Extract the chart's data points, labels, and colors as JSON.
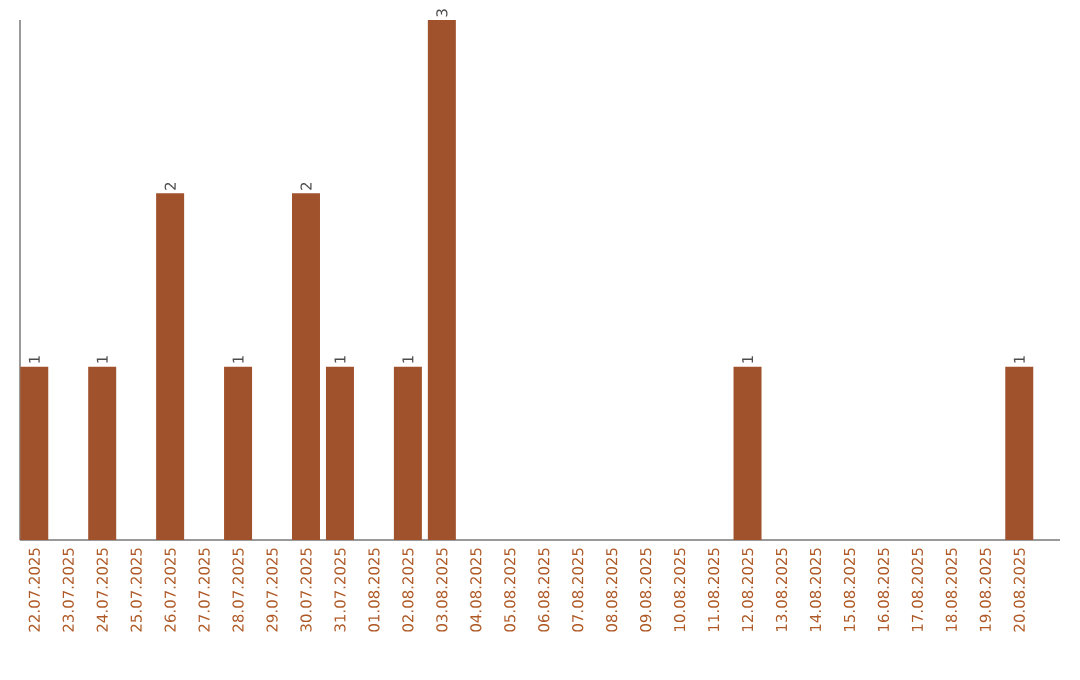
{
  "chart_data": {
    "type": "bar",
    "categories": [
      "22.07.2025",
      "23.07.2025",
      "24.07.2025",
      "25.07.2025",
      "26.07.2025",
      "27.07.2025",
      "28.07.2025",
      "29.07.2025",
      "30.07.2025",
      "31.07.2025",
      "01.08.2025",
      "02.08.2025",
      "03.08.2025",
      "04.08.2025",
      "05.08.2025",
      "06.08.2025",
      "07.08.2025",
      "08.08.2025",
      "09.08.2025",
      "10.08.2025",
      "11.08.2025",
      "12.08.2025",
      "13.08.2025",
      "14.08.2025",
      "15.08.2025",
      "16.08.2025",
      "17.08.2025",
      "18.08.2025",
      "19.08.2025",
      "20.08.2025"
    ],
    "values": [
      1,
      0,
      1,
      0,
      2,
      0,
      1,
      0,
      2,
      1,
      0,
      1,
      3,
      0,
      0,
      0,
      0,
      0,
      0,
      0,
      0,
      1,
      0,
      0,
      0,
      0,
      0,
      0,
      0,
      1
    ],
    "value_labels": [
      "1",
      null,
      "1",
      null,
      "2",
      null,
      "1",
      null,
      "2",
      "1",
      null,
      "1",
      "3",
      null,
      null,
      null,
      null,
      null,
      null,
      null,
      null,
      "1",
      null,
      null,
      null,
      null,
      null,
      null,
      null,
      "1"
    ],
    "color": "#a0522d"
  }
}
